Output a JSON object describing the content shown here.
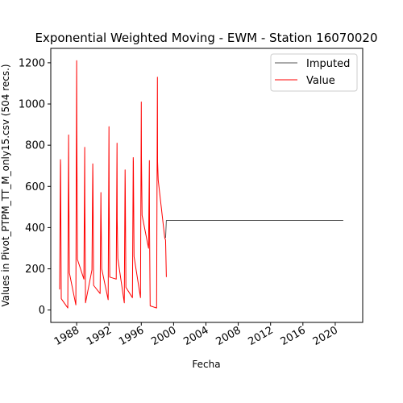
{
  "chart_data": {
    "type": "line",
    "title": "Exponential Weighted Moving - EWM - Station 16070020",
    "xlabel": "Fecha",
    "ylabel": "Values in Pivot_PTPM_TT_M_only15.csv (504 recs.)",
    "xlim": [
      1984.8,
      2023.4
    ],
    "ylim": [
      -60,
      1270
    ],
    "x_ticks": [
      1988,
      1992,
      1996,
      2000,
      2004,
      2008,
      2012,
      2016,
      2020
    ],
    "y_ticks": [
      0,
      200,
      400,
      600,
      800,
      1000,
      1200
    ],
    "legend_position": "upper right",
    "grid": false,
    "series": [
      {
        "name": "Imputed",
        "color": "#555555",
        "x": [
          1999.0,
          1999.1,
          1999.2,
          2021.0
        ],
        "y": [
          350,
          435,
          435,
          435
        ]
      },
      {
        "name": "Value",
        "color": "#ff0000",
        "x": [
          1985.9,
          1986.0,
          1986.02,
          1986.1,
          1986.9,
          1987.0,
          1987.02,
          1987.1,
          1987.9,
          1988.0,
          1988.02,
          1988.1,
          1988.9,
          1989.0,
          1989.02,
          1989.1,
          1989.9,
          1990.0,
          1990.02,
          1990.1,
          1990.9,
          1991.0,
          1991.02,
          1991.1,
          1991.9,
          1992.0,
          1992.02,
          1992.1,
          1992.9,
          1993.0,
          1993.02,
          1993.1,
          1993.9,
          1994.0,
          1994.02,
          1994.1,
          1994.9,
          1995.0,
          1995.02,
          1995.1,
          1995.9,
          1996.0,
          1996.02,
          1996.1,
          1996.9,
          1997.0,
          1997.02,
          1997.1,
          1997.9,
          1998.0,
          1998.02,
          1998.1,
          1998.9,
          1999.0,
          1999.02,
          1999.1
        ],
        "y": [
          100,
          730,
          700,
          55,
          10,
          850,
          640,
          180,
          25,
          1210,
          870,
          245,
          150,
          790,
          520,
          35,
          195,
          710,
          640,
          120,
          80,
          570,
          470,
          200,
          50,
          890,
          540,
          160,
          150,
          810,
          440,
          250,
          35,
          680,
          610,
          110,
          60,
          740,
          720,
          260,
          60,
          1010,
          740,
          460,
          300,
          725,
          410,
          20,
          10,
          1130,
          720,
          630,
          350,
          340,
          310,
          160
        ]
      }
    ]
  }
}
